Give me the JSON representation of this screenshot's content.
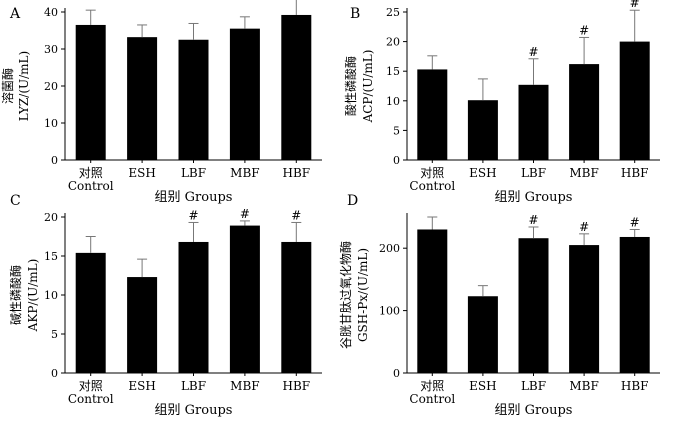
{
  "chart_data": [
    {
      "type": "bar",
      "panel_label": "A",
      "ylabel": [
        "溶菌酶",
        "LYZ/(U/mL)"
      ],
      "xlabel": "组别  Groups",
      "categories": [
        [
          "对照",
          "Control"
        ],
        [
          "ESH"
        ],
        [
          "LBF"
        ],
        [
          "MBF"
        ],
        [
          "HBF"
        ]
      ],
      "values": [
        36.5,
        33.2,
        32.5,
        35.5,
        39.2
      ],
      "errors": [
        4.0,
        3.3,
        4.4,
        3.2,
        4.3
      ],
      "significance": [
        "",
        "",
        "",
        "",
        ""
      ],
      "ylim": [
        0,
        40
      ],
      "yticks": [
        0,
        10,
        20,
        30,
        40
      ]
    },
    {
      "type": "bar",
      "panel_label": "B",
      "ylabel": [
        "酸性磷酸酶",
        "ACP/(U/mL)"
      ],
      "xlabel": "组别  Groups",
      "categories": [
        [
          "对照",
          "Control"
        ],
        [
          "ESH"
        ],
        [
          "LBF"
        ],
        [
          "MBF"
        ],
        [
          "HBF"
        ]
      ],
      "values": [
        15.3,
        10.1,
        12.7,
        16.2,
        20.0
      ],
      "errors": [
        2.3,
        3.6,
        4.4,
        4.5,
        5.3
      ],
      "significance": [
        "",
        "",
        "#",
        "#",
        "#"
      ],
      "ylim": [
        0,
        25
      ],
      "yticks": [
        0,
        5,
        10,
        15,
        20,
        25
      ]
    },
    {
      "type": "bar",
      "panel_label": "C",
      "ylabel": [
        "碱性磷酸酶",
        "AKP/(U/mL)"
      ],
      "xlabel": "组别  Groups",
      "categories": [
        [
          "对照",
          "Control"
        ],
        [
          "ESH"
        ],
        [
          "LBF"
        ],
        [
          "MBF"
        ],
        [
          "HBF"
        ]
      ],
      "values": [
        15.4,
        12.3,
        16.8,
        18.9,
        16.8
      ],
      "errors": [
        2.1,
        2.3,
        2.5,
        0.6,
        2.5
      ],
      "significance": [
        "",
        "",
        "#",
        "#",
        "#"
      ],
      "ylim": [
        0,
        20
      ],
      "yticks": [
        0,
        5,
        10,
        15,
        20
      ]
    },
    {
      "type": "bar",
      "panel_label": "D",
      "ylabel": [
        "谷胱甘肽过氧化物酶",
        "GSH-Px/(U/mL)"
      ],
      "xlabel": "组别  Groups",
      "categories": [
        [
          "对照",
          "Control"
        ],
        [
          "ESH"
        ],
        [
          "LBF"
        ],
        [
          "MBF"
        ],
        [
          "HBF"
        ]
      ],
      "values": [
        230,
        123,
        216,
        205,
        218
      ],
      "errors": [
        20,
        17,
        18,
        18,
        12
      ],
      "significance": [
        "",
        "",
        "#",
        "#",
        "#"
      ],
      "ylim": [
        0,
        250
      ],
      "yticks": [
        0,
        100,
        200
      ]
    }
  ]
}
